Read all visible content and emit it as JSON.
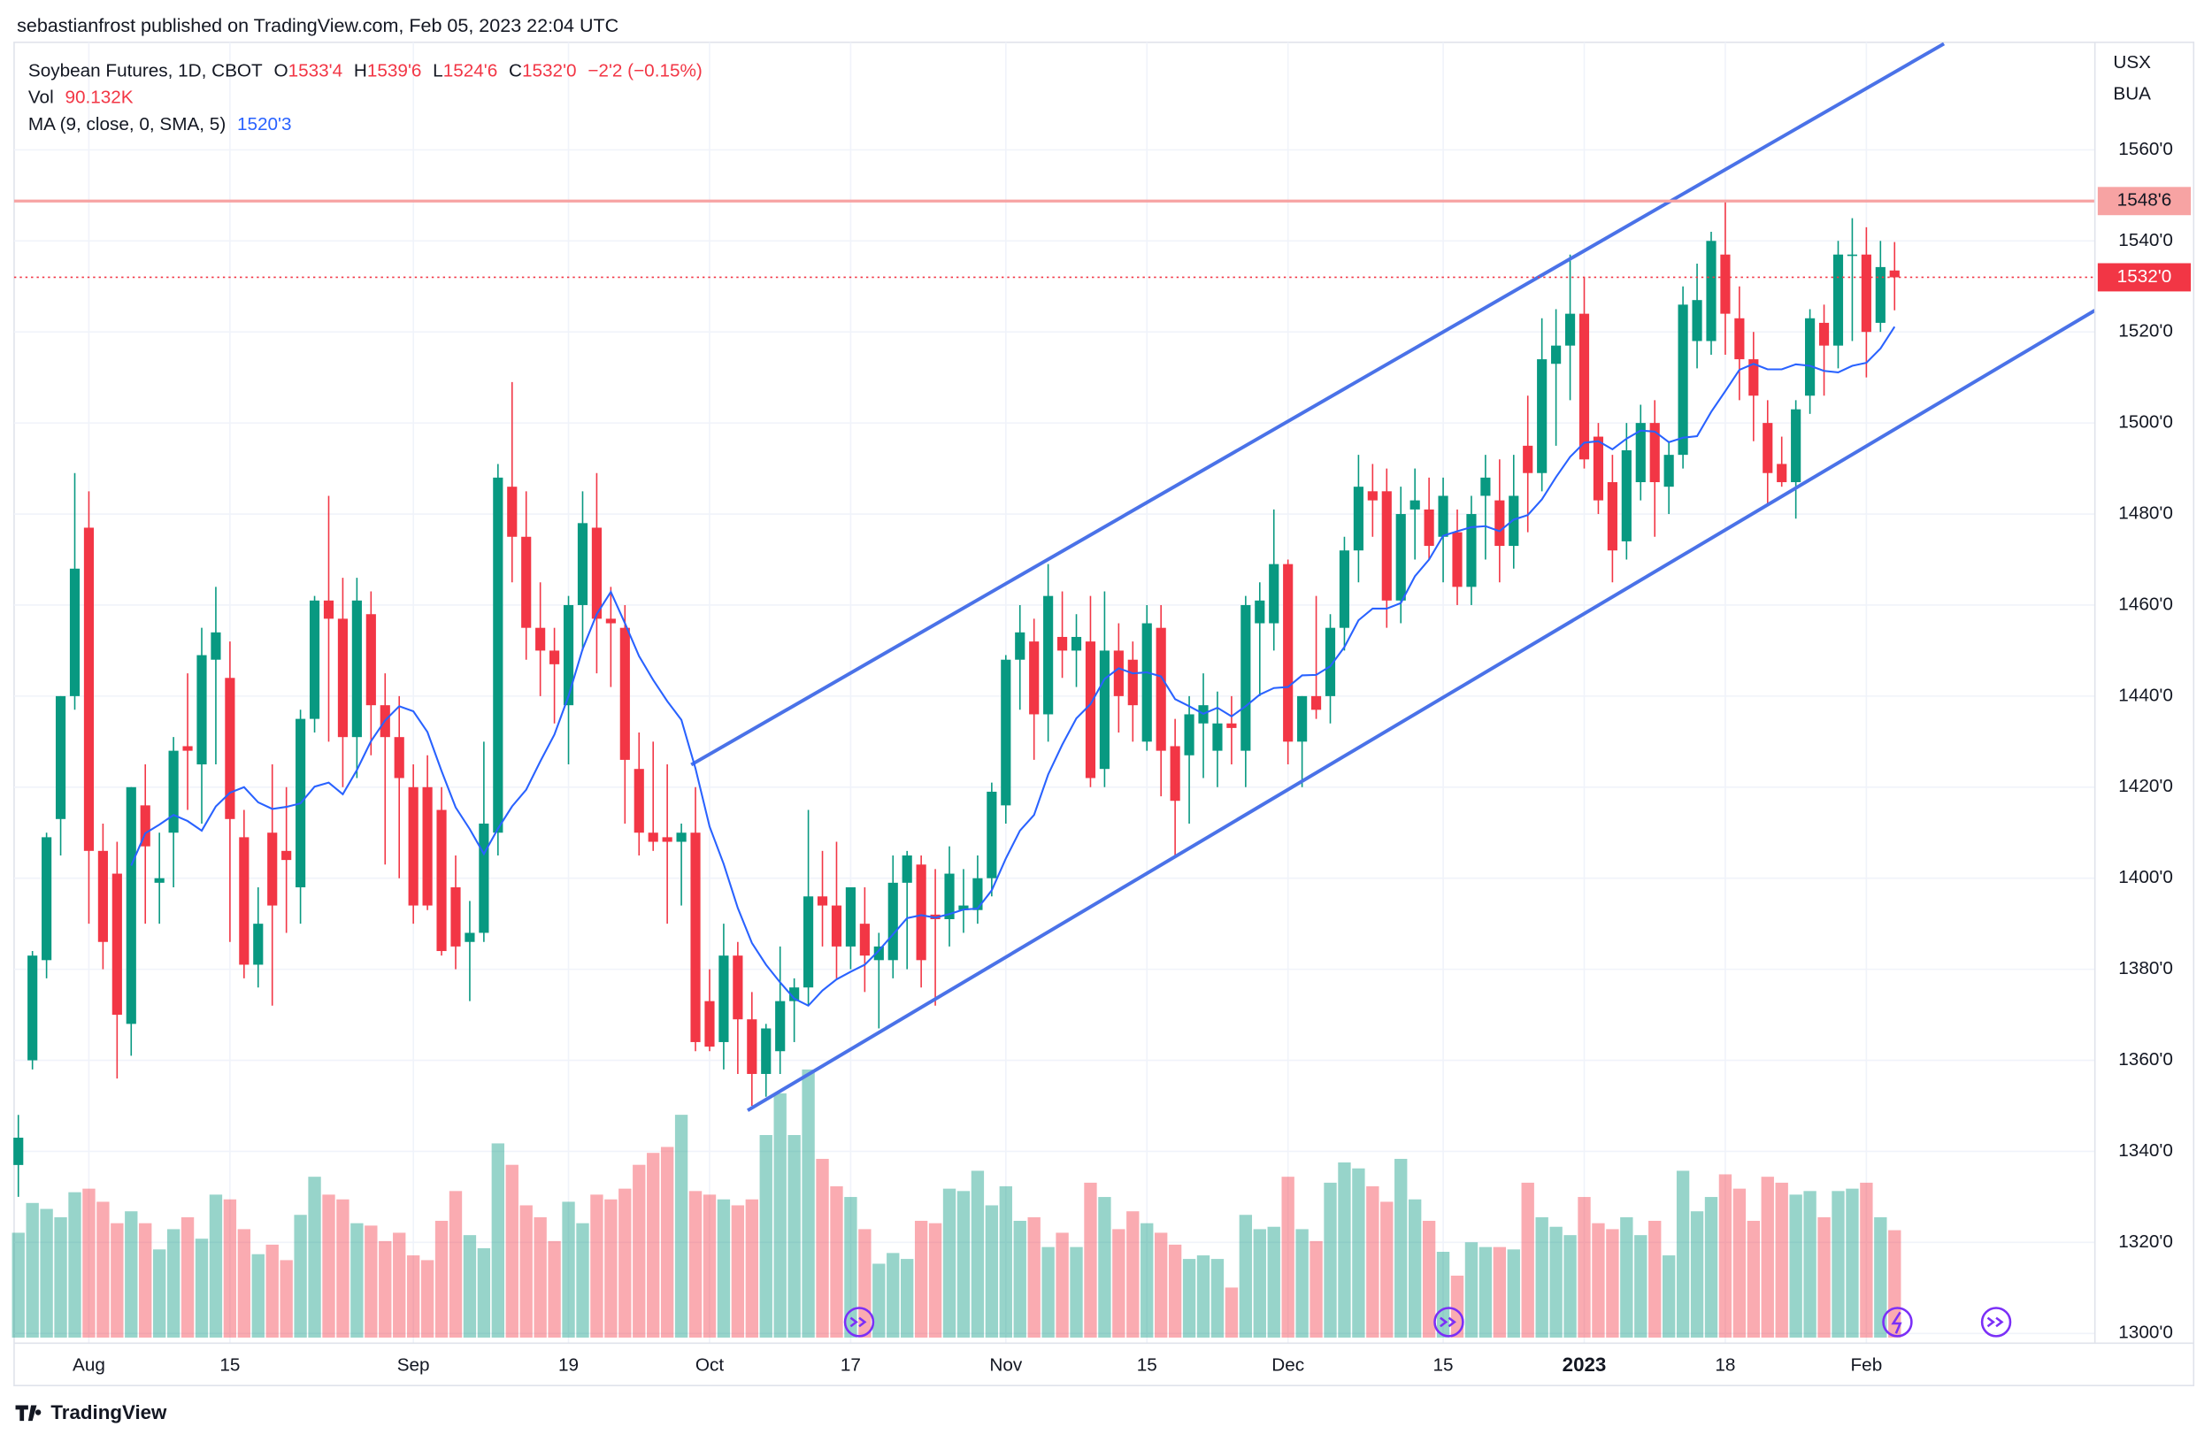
{
  "chart_data": {
    "type": "candlestick",
    "publisher": "sebastianfrost published on TradingView.com, Feb 05, 2023 22:04 UTC",
    "title": "Soybean Futures, 1D, CBOT",
    "ohlc_legend": [
      {
        "key": "O",
        "text": "1533'4"
      },
      {
        "key": "H",
        "text": "1539'6"
      },
      {
        "key": "L",
        "text": "1524'6"
      },
      {
        "key": "C",
        "text": "1532'0"
      }
    ],
    "change": "−2'2 (−0.15%)",
    "volume_label": "Vol",
    "volume_value": "90.132K",
    "ma_label": "MA (9, close, 0, SMA, 5)",
    "ma_value": "1520'3",
    "currency": "USX",
    "unit": "BUA",
    "brand": "TradingView",
    "up_color": "#089981",
    "down_color": "#f23645",
    "ma_color": "#2962ff",
    "grid": true,
    "categories": [
      null,
      null,
      null,
      null,
      null,
      "Aug",
      null,
      null,
      null,
      null,
      null,
      null,
      null,
      null,
      null,
      "15",
      null,
      null,
      null,
      null,
      null,
      null,
      null,
      null,
      null,
      null,
      null,
      null,
      "Sep",
      null,
      null,
      null,
      null,
      null,
      null,
      null,
      null,
      null,
      null,
      "19",
      null,
      null,
      null,
      null,
      null,
      null,
      null,
      null,
      null,
      "Oct",
      null,
      null,
      null,
      null,
      null,
      null,
      null,
      null,
      null,
      "17",
      null,
      null,
      null,
      null,
      null,
      null,
      null,
      null,
      null,
      null,
      "Nov",
      null,
      null,
      null,
      null,
      null,
      null,
      null,
      null,
      null,
      "15",
      null,
      null,
      null,
      null,
      null,
      null,
      null,
      null,
      null,
      "Dec",
      null,
      null,
      null,
      null,
      null,
      null,
      null,
      null,
      null,
      null,
      "15",
      null,
      null,
      null,
      null,
      null,
      null,
      null,
      null,
      null,
      "2023",
      null,
      null,
      null,
      null,
      null,
      null,
      null,
      null,
      null,
      "18",
      null,
      null,
      null,
      null,
      null,
      null,
      null,
      null,
      null,
      "Feb",
      null,
      null
    ],
    "open": [
      1337,
      1360,
      1382,
      1413,
      1440,
      1477,
      1406,
      1401,
      1368,
      1416,
      1399,
      1410,
      1429,
      1425,
      1448,
      1444,
      1409,
      1381,
      1410,
      1406,
      1398,
      1435,
      1461,
      1457,
      1431,
      1458,
      1438,
      1431,
      1420,
      1420,
      1415,
      1398,
      1386,
      1388,
      1410,
      1486,
      1475,
      1455,
      1450,
      1438,
      1460,
      1477,
      1457,
      1455,
      1424,
      1410,
      1409,
      1408,
      1410,
      1373,
      1364,
      1383,
      1369,
      1357,
      1362,
      1373,
      1376,
      1396,
      1394,
      1385,
      1390,
      1382,
      1382,
      1399,
      1403,
      1392,
      1391,
      1393,
      1393,
      1400,
      1416,
      1448,
      1452,
      1436,
      1453,
      1450,
      1452,
      1424,
      1450,
      1448,
      1430,
      1455,
      1429,
      1427,
      1434,
      1428,
      1434,
      1428,
      1456,
      1456,
      1469,
      1430,
      1440,
      1440,
      1455,
      1472,
      1485,
      1485,
      1461,
      1481,
      1481,
      1475,
      1476,
      1464,
      1484,
      1483,
      1473,
      1495,
      1489,
      1513,
      1517,
      1524,
      1497,
      1487,
      1474,
      1487,
      1500,
      1486,
      1493,
      1518,
      1518,
      1537,
      1523,
      1514,
      1500,
      1491,
      1487,
      1506,
      1522,
      1517,
      1537,
      1537,
      1522,
      1533.5
    ],
    "high": [
      1348,
      1384,
      1410,
      1440,
      1489,
      1485,
      1412,
      1408,
      1420,
      1425,
      1410,
      1431,
      1445,
      1455,
      1464,
      1452,
      1415,
      1398,
      1425,
      1420,
      1437,
      1462,
      1484,
      1466,
      1466,
      1463,
      1445,
      1440,
      1425,
      1427,
      1420,
      1405,
      1395,
      1430,
      1491,
      1509,
      1485,
      1465,
      1455,
      1462,
      1485,
      1489,
      1464,
      1460,
      1432,
      1430,
      1425,
      1412,
      1420,
      1380,
      1390,
      1386,
      1375,
      1368,
      1385,
      1378,
      1415,
      1406,
      1408,
      1398,
      1398,
      1388,
      1405,
      1406,
      1405,
      1402,
      1407,
      1402,
      1405,
      1421,
      1449,
      1460,
      1457,
      1469,
      1463,
      1458,
      1462,
      1463,
      1456,
      1452,
      1460,
      1460,
      1435,
      1440,
      1445,
      1441,
      1440,
      1462,
      1465,
      1481,
      1470,
      1440,
      1462,
      1458,
      1475,
      1493,
      1491,
      1490,
      1486,
      1490,
      1488,
      1488,
      1481,
      1484,
      1493,
      1492,
      1493,
      1506,
      1523,
      1525,
      1537,
      1532,
      1500,
      1493,
      1500,
      1504,
      1505,
      1496,
      1530,
      1535,
      1542,
      1549,
      1530,
      1520,
      1505,
      1497,
      1505,
      1525,
      1526,
      1540,
      1545,
      1543,
      1540,
      1539.75
    ],
    "low": [
      1330,
      1358,
      1378,
      1405,
      1437,
      1390,
      1380,
      1356,
      1361,
      1390,
      1390,
      1398,
      1415,
      1412,
      1425,
      1386,
      1378,
      1376,
      1372,
      1388,
      1390,
      1432,
      1430,
      1420,
      1422,
      1427,
      1403,
      1400,
      1390,
      1393,
      1383,
      1380,
      1373,
      1386,
      1405,
      1465,
      1448,
      1440,
      1434,
      1425,
      1450,
      1445,
      1442,
      1412,
      1405,
      1406,
      1390,
      1394,
      1362,
      1362,
      1358,
      1357,
      1350,
      1352,
      1357,
      1364,
      1372,
      1385,
      1378,
      1380,
      1375,
      1367,
      1378,
      1380,
      1376,
      1372,
      1385,
      1388,
      1390,
      1396,
      1412,
      1437,
      1426,
      1430,
      1444,
      1442,
      1420,
      1420,
      1432,
      1430,
      1428,
      1418,
      1405,
      1412,
      1422,
      1420,
      1425,
      1420,
      1440,
      1450,
      1425,
      1420,
      1435,
      1434,
      1450,
      1465,
      1475,
      1455,
      1456,
      1470,
      1470,
      1465,
      1460,
      1460,
      1470,
      1465,
      1468,
      1476,
      1485,
      1495,
      1505,
      1490,
      1480,
      1465,
      1470,
      1483,
      1475,
      1480,
      1490,
      1512,
      1515,
      1515,
      1505,
      1496,
      1482,
      1486,
      1479,
      1502,
      1506,
      1512,
      1518,
      1510,
      1520,
      1524.75
    ],
    "close": [
      1343,
      1383,
      1409,
      1440,
      1468,
      1406,
      1386,
      1370,
      1420,
      1407,
      1400,
      1428,
      1428,
      1449,
      1454,
      1413,
      1381,
      1390,
      1394,
      1404,
      1435,
      1461,
      1457,
      1431,
      1461,
      1438,
      1431,
      1422,
      1394,
      1394,
      1384,
      1385,
      1388,
      1412,
      1488,
      1475,
      1455,
      1450,
      1447,
      1460,
      1478,
      1457,
      1456,
      1426,
      1410,
      1408,
      1408,
      1410,
      1364,
      1363,
      1383,
      1369,
      1357,
      1367,
      1373,
      1376,
      1396,
      1394,
      1385,
      1398,
      1383,
      1385,
      1399,
      1405,
      1382,
      1391,
      1401,
      1394,
      1400,
      1419,
      1448,
      1454,
      1436,
      1462,
      1450,
      1453,
      1422,
      1450,
      1440,
      1438,
      1456,
      1428,
      1417,
      1436,
      1438,
      1434,
      1433,
      1460,
      1461,
      1469,
      1430,
      1440,
      1437,
      1455,
      1472,
      1486,
      1483,
      1461,
      1480,
      1483,
      1473,
      1484,
      1464,
      1480,
      1488,
      1473,
      1484,
      1489,
      1514,
      1517,
      1524,
      1492,
      1483,
      1472,
      1494,
      1500,
      1487,
      1493,
      1526,
      1527,
      1540,
      1524,
      1514,
      1506,
      1489,
      1487,
      1503,
      1523,
      1517,
      1537,
      1537,
      1520,
      1534.25,
      1532
    ],
    "volume": [
      88,
      113,
      108,
      101,
      122,
      125,
      114,
      96,
      106,
      96,
      74,
      91,
      101,
      83,
      120,
      116,
      91,
      70,
      78,
      65,
      103,
      135,
      120,
      116,
      96,
      94,
      81,
      88,
      69,
      65,
      98,
      123,
      86,
      75,
      163,
      145,
      111,
      101,
      81,
      114,
      96,
      120,
      116,
      125,
      145,
      155,
      160,
      187,
      123,
      120,
      116,
      111,
      116,
      170,
      205,
      170,
      225,
      150,
      127,
      118,
      91,
      62,
      71,
      66,
      98,
      96,
      125,
      123,
      140,
      111,
      127,
      98,
      101,
      76,
      88,
      76,
      130,
      118,
      91,
      106,
      96,
      88,
      78,
      66,
      69,
      66,
      42,
      103,
      91,
      93,
      135,
      91,
      81,
      130,
      147,
      142,
      127,
      114,
      150,
      116,
      98,
      72,
      52,
      80,
      76,
      76,
      74,
      130,
      101,
      93,
      86,
      118,
      96,
      91,
      101,
      86,
      98,
      69,
      140,
      106,
      118,
      137,
      125,
      98,
      135,
      130,
      120,
      123,
      101,
      123,
      125,
      130,
      101,
      90.132
    ],
    "ylim": [
      1298,
      1583
    ],
    "yticks": [
      {
        "value": 1300,
        "label": "1300'0"
      },
      {
        "value": 1320,
        "label": "1320'0"
      },
      {
        "value": 1340,
        "label": "1340'0"
      },
      {
        "value": 1360,
        "label": "1360'0"
      },
      {
        "value": 1380,
        "label": "1380'0"
      },
      {
        "value": 1400,
        "label": "1400'0"
      },
      {
        "value": 1420,
        "label": "1420'0"
      },
      {
        "value": 1440,
        "label": "1440'0"
      },
      {
        "value": 1460,
        "label": "1460'0"
      },
      {
        "value": 1480,
        "label": "1480'0"
      },
      {
        "value": 1500,
        "label": "1500'0"
      },
      {
        "value": 1520,
        "label": "1520'0"
      },
      {
        "value": 1540,
        "label": "1540'0"
      },
      {
        "value": 1560,
        "label": "1560'0"
      }
    ],
    "resistance": {
      "value": 1548.75,
      "label": "1548'6",
      "color": "#f7a3a3"
    },
    "last_price": {
      "value": 1532,
      "label": "1532'0",
      "color": "#f23645"
    }
  }
}
